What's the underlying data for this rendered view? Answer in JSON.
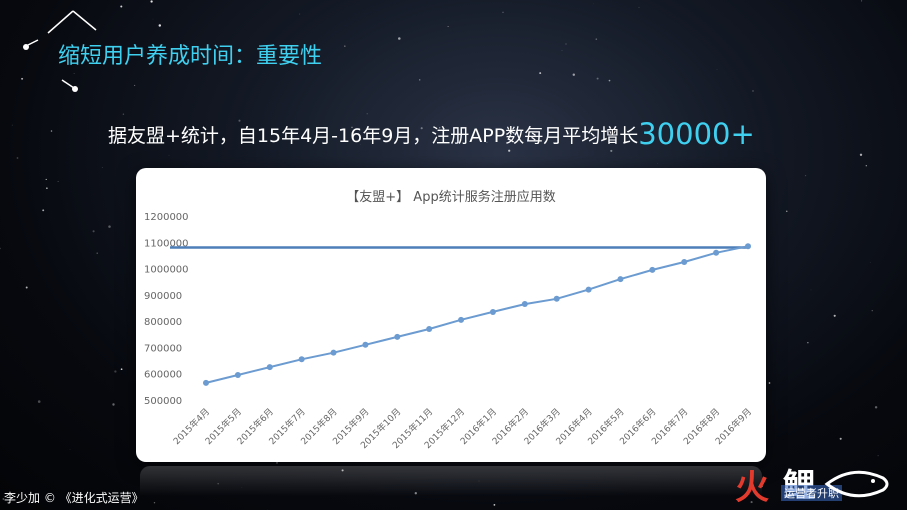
{
  "slide": {
    "title": "缩短用户养成时间：重要性",
    "headline_text": "据友盟+统计，自15年4月-16年9月，注册APP数每月平均增长",
    "headline_highlight": "30000+",
    "footer": "李少加 © 《进化式运营》",
    "logo_char1": "火",
    "logo_char2": "鲤",
    "logo_sub": "运营者升职",
    "accent_color": "#3fd0f0"
  },
  "chart_data": {
    "type": "line",
    "title": "【友盟+】 App统计服务注册应用数",
    "xlabel": "",
    "ylabel": "",
    "ylim": [
      500000,
      1200000
    ],
    "y_ticks": [
      500000,
      600000,
      700000,
      800000,
      900000,
      1000000,
      1100000,
      1200000
    ],
    "categories": [
      "2015年4月",
      "2015年5月",
      "2015年6月",
      "2015年7月",
      "2015年8月",
      "2015年9月",
      "2015年10月",
      "2015年11月",
      "2015年12月",
      "2016年1月",
      "2016年2月",
      "2016年3月",
      "2016年4月",
      "2016年5月",
      "2016年6月",
      "2016年7月",
      "2016年8月",
      "2016年9月"
    ],
    "series": [
      {
        "values": [
          565000,
          595000,
          625000,
          655000,
          680000,
          710000,
          740000,
          770000,
          805000,
          835000,
          865000,
          885000,
          920000,
          960000,
          995000,
          1025000,
          1060000,
          1085000
        ],
        "color": "#6b9bd0"
      }
    ],
    "reference_line": {
      "value": 1080000,
      "color": "#4f7fb8"
    },
    "grid": false,
    "legend": "none"
  }
}
